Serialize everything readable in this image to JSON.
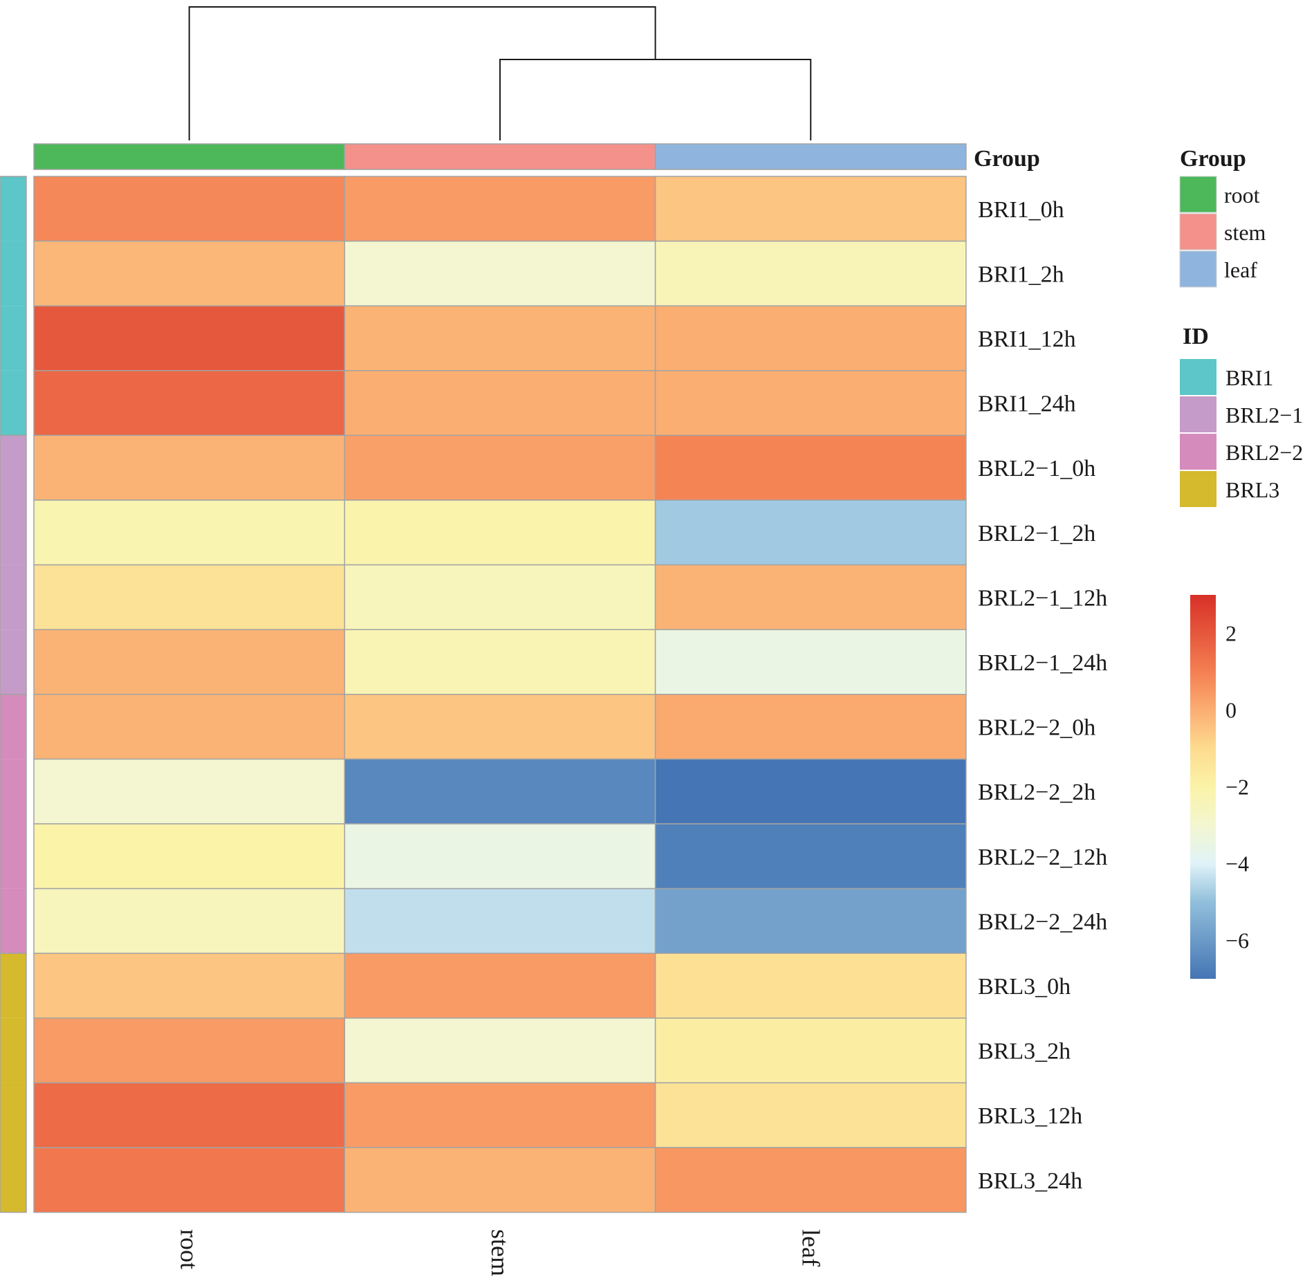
{
  "chart_data": {
    "type": "heatmap",
    "columns": [
      "root",
      "stem",
      "leaf"
    ],
    "rows": [
      "BRI1_0h",
      "BRI1_2h",
      "BRI1_12h",
      "BRI1_24h",
      "BRL2−1_0h",
      "BRL2−1_2h",
      "BRL2−1_12h",
      "BRL2−1_24h",
      "BRL2−2_0h",
      "BRL2−2_2h",
      "BRL2−2_12h",
      "BRL2−2_24h",
      "BRL3_0h",
      "BRL3_2h",
      "BRL3_12h",
      "BRL3_24h"
    ],
    "values": [
      [
        0.8,
        0.4,
        -0.5
      ],
      [
        -0.2,
        -3.0,
        -2.4
      ],
      [
        2.0,
        -0.1,
        0.0
      ],
      [
        1.6,
        0.0,
        0.0
      ],
      [
        -0.1,
        0.3,
        0.9
      ],
      [
        -2.2,
        -2.1,
        -4.8
      ],
      [
        -1.3,
        -2.5,
        -0.1
      ],
      [
        -0.1,
        -2.3,
        -3.5
      ],
      [
        -0.1,
        -0.5,
        0.1
      ],
      [
        -3.0,
        -6.5,
        -7.0
      ],
      [
        -2.0,
        -3.5,
        -6.7
      ],
      [
        -2.5,
        -4.4,
        -5.8
      ],
      [
        -0.5,
        0.4,
        -1.2
      ],
      [
        0.4,
        -3.0,
        -1.8
      ],
      [
        1.5,
        0.4,
        -1.3
      ],
      [
        1.2,
        -0.1,
        0.5
      ]
    ],
    "column_annotation": {
      "title": "Group",
      "legend_title": "Group",
      "levels": [
        {
          "label": "root",
          "color": "#4cb85a"
        },
        {
          "label": "stem",
          "color": "#f4918b"
        },
        {
          "label": "leaf",
          "color": "#8fb5df"
        }
      ]
    },
    "row_annotation": {
      "legend_title": "ID",
      "levels": [
        {
          "label": "BRI1",
          "color": "#5cc6c8"
        },
        {
          "label": "BRL2−1",
          "color": "#c59bc9"
        },
        {
          "label": "BRL2−2",
          "color": "#d58cbd"
        },
        {
          "label": "BRL3",
          "color": "#d4ba2c"
        }
      ],
      "row_groups": [
        0,
        0,
        0,
        0,
        1,
        1,
        1,
        1,
        2,
        2,
        2,
        2,
        3,
        3,
        3,
        3
      ]
    },
    "color_scale": {
      "min": -7,
      "max": 3,
      "ticks": [
        2,
        0,
        -2,
        -4,
        -6
      ],
      "tick_labels": [
        "2",
        "0",
        "−2",
        "−4",
        "−6"
      ],
      "stops": [
        {
          "v": -7.0,
          "c": "#4575b4"
        },
        {
          "v": -5.0,
          "c": "#91bfdb"
        },
        {
          "v": -4.0,
          "c": "#e0f3f8"
        },
        {
          "v": -3.0,
          "c": "#f3f6d0"
        },
        {
          "v": -2.0,
          "c": "#fbf3a8"
        },
        {
          "v": -1.0,
          "c": "#fddb8f"
        },
        {
          "v": 0.0,
          "c": "#fbae72"
        },
        {
          "v": 1.0,
          "c": "#f47f52"
        },
        {
          "v": 3.0,
          "c": "#d73027"
        }
      ]
    },
    "dendrogram": {
      "columns_tree": "(root,(stem,leaf))"
    }
  }
}
